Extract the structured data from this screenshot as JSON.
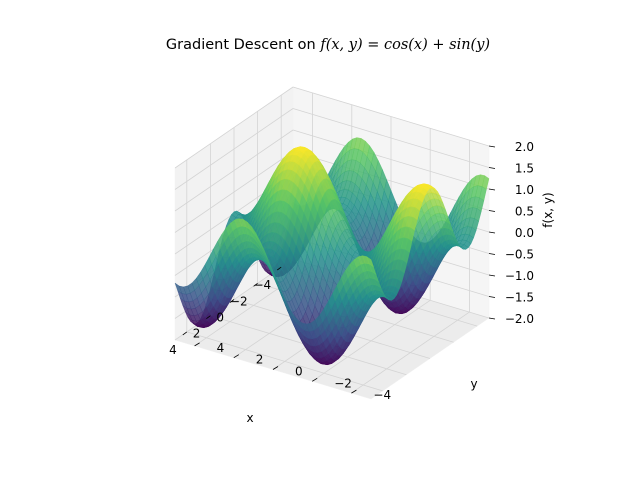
{
  "chart_data": {
    "type": "surface",
    "title_prefix": "Gradient Descent on",
    "title_math": "f(x, y) = cos(x) + sin(y)",
    "function": "cos(x) + sin(y)",
    "xlabel": "x",
    "ylabel": "y",
    "zlabel": "f(x, y)",
    "xlim": [
      -5,
      5
    ],
    "ylim": [
      -5,
      5
    ],
    "zlim": [
      -2,
      2
    ],
    "x_ticks": [
      "−4",
      "−2",
      "0",
      "2",
      "4"
    ],
    "x_tick_values": [
      -4,
      -2,
      0,
      2,
      4
    ],
    "y_ticks": [
      "−4",
      "−2",
      "0",
      "2",
      "4"
    ],
    "y_tick_values": [
      -4,
      -2,
      0,
      2,
      4
    ],
    "z_ticks": [
      "−2.0",
      "−1.5",
      "−1.0",
      "−0.5",
      "0.0",
      "0.5",
      "1.0",
      "1.5",
      "2.0"
    ],
    "z_tick_values": [
      -2,
      -1.5,
      -1,
      -0.5,
      0,
      0.5,
      1,
      1.5,
      2
    ],
    "colormap": [
      "#440154",
      "#3b528b",
      "#21918c",
      "#5ec962",
      "#fde725"
    ],
    "grid": true
  }
}
